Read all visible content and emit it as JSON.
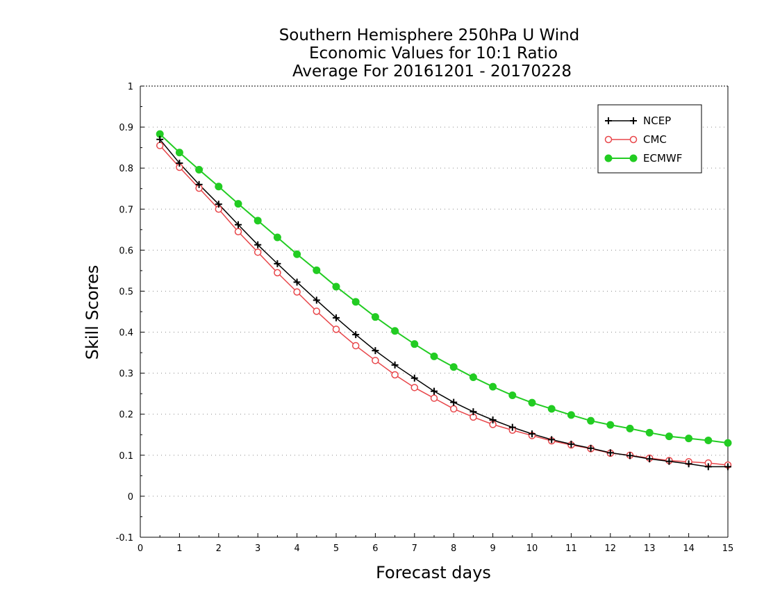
{
  "chart_data": {
    "type": "line",
    "title_lines": [
      "Southern Hemisphere 250hPa U Wind",
      "Economic Values for 10:1 Ratio",
      "Average For 20161201 - 20170228"
    ],
    "xlabel": "Forecast days",
    "ylabel": "Skill Scores",
    "xlim": [
      0,
      15
    ],
    "ylim": [
      -0.1,
      1
    ],
    "xticks": [
      0,
      1,
      2,
      3,
      4,
      5,
      6,
      7,
      8,
      9,
      10,
      11,
      12,
      13,
      14,
      15
    ],
    "yticks": [
      -0.1,
      0,
      0.1,
      0.2,
      0.3,
      0.4,
      0.5,
      0.6,
      0.7,
      0.8,
      0.9,
      1
    ],
    "ytick_labels": [
      "-0.1",
      "0",
      "0.1",
      "0.2",
      "0.3",
      "0.4",
      "0.5",
      "0.6",
      "0.7",
      "0.8",
      "0.9",
      "1"
    ],
    "grid": "horizontal dotted",
    "legend_position": "top-right",
    "x": [
      0.5,
      1,
      1.5,
      2,
      2.5,
      3,
      3.5,
      4,
      4.5,
      5,
      5.5,
      6,
      6.5,
      7,
      7.5,
      8,
      8.5,
      9,
      9.5,
      10,
      10.5,
      11,
      11.5,
      12,
      12.5,
      13,
      13.5,
      14,
      14.5,
      15
    ],
    "series": [
      {
        "name": "NCEP",
        "color": "#000000",
        "marker": "plus",
        "values": [
          0.87,
          0.812,
          0.76,
          0.712,
          0.662,
          0.613,
          0.567,
          0.522,
          0.478,
          0.435,
          0.394,
          0.355,
          0.32,
          0.288,
          0.256,
          0.229,
          0.206,
          0.186,
          0.168,
          0.152,
          0.138,
          0.127,
          0.117,
          0.106,
          0.099,
          0.091,
          0.085,
          0.079,
          0.072,
          0.072
        ]
      },
      {
        "name": "CMC",
        "color": "#e8464a",
        "marker": "open-circle",
        "values": [
          0.855,
          0.802,
          0.751,
          0.7,
          0.645,
          0.595,
          0.545,
          0.498,
          0.451,
          0.407,
          0.367,
          0.331,
          0.296,
          0.265,
          0.239,
          0.213,
          0.193,
          0.175,
          0.161,
          0.148,
          0.135,
          0.125,
          0.116,
          0.105,
          0.1,
          0.093,
          0.087,
          0.084,
          0.081,
          0.076
        ]
      },
      {
        "name": "ECMWF",
        "color": "#22cc22",
        "marker": "filled-circle",
        "values": [
          0.883,
          0.838,
          0.796,
          0.755,
          0.713,
          0.672,
          0.631,
          0.59,
          0.551,
          0.511,
          0.474,
          0.437,
          0.403,
          0.371,
          0.341,
          0.315,
          0.29,
          0.267,
          0.246,
          0.228,
          0.213,
          0.198,
          0.184,
          0.174,
          0.165,
          0.155,
          0.146,
          0.141,
          0.136,
          0.13
        ]
      }
    ]
  }
}
